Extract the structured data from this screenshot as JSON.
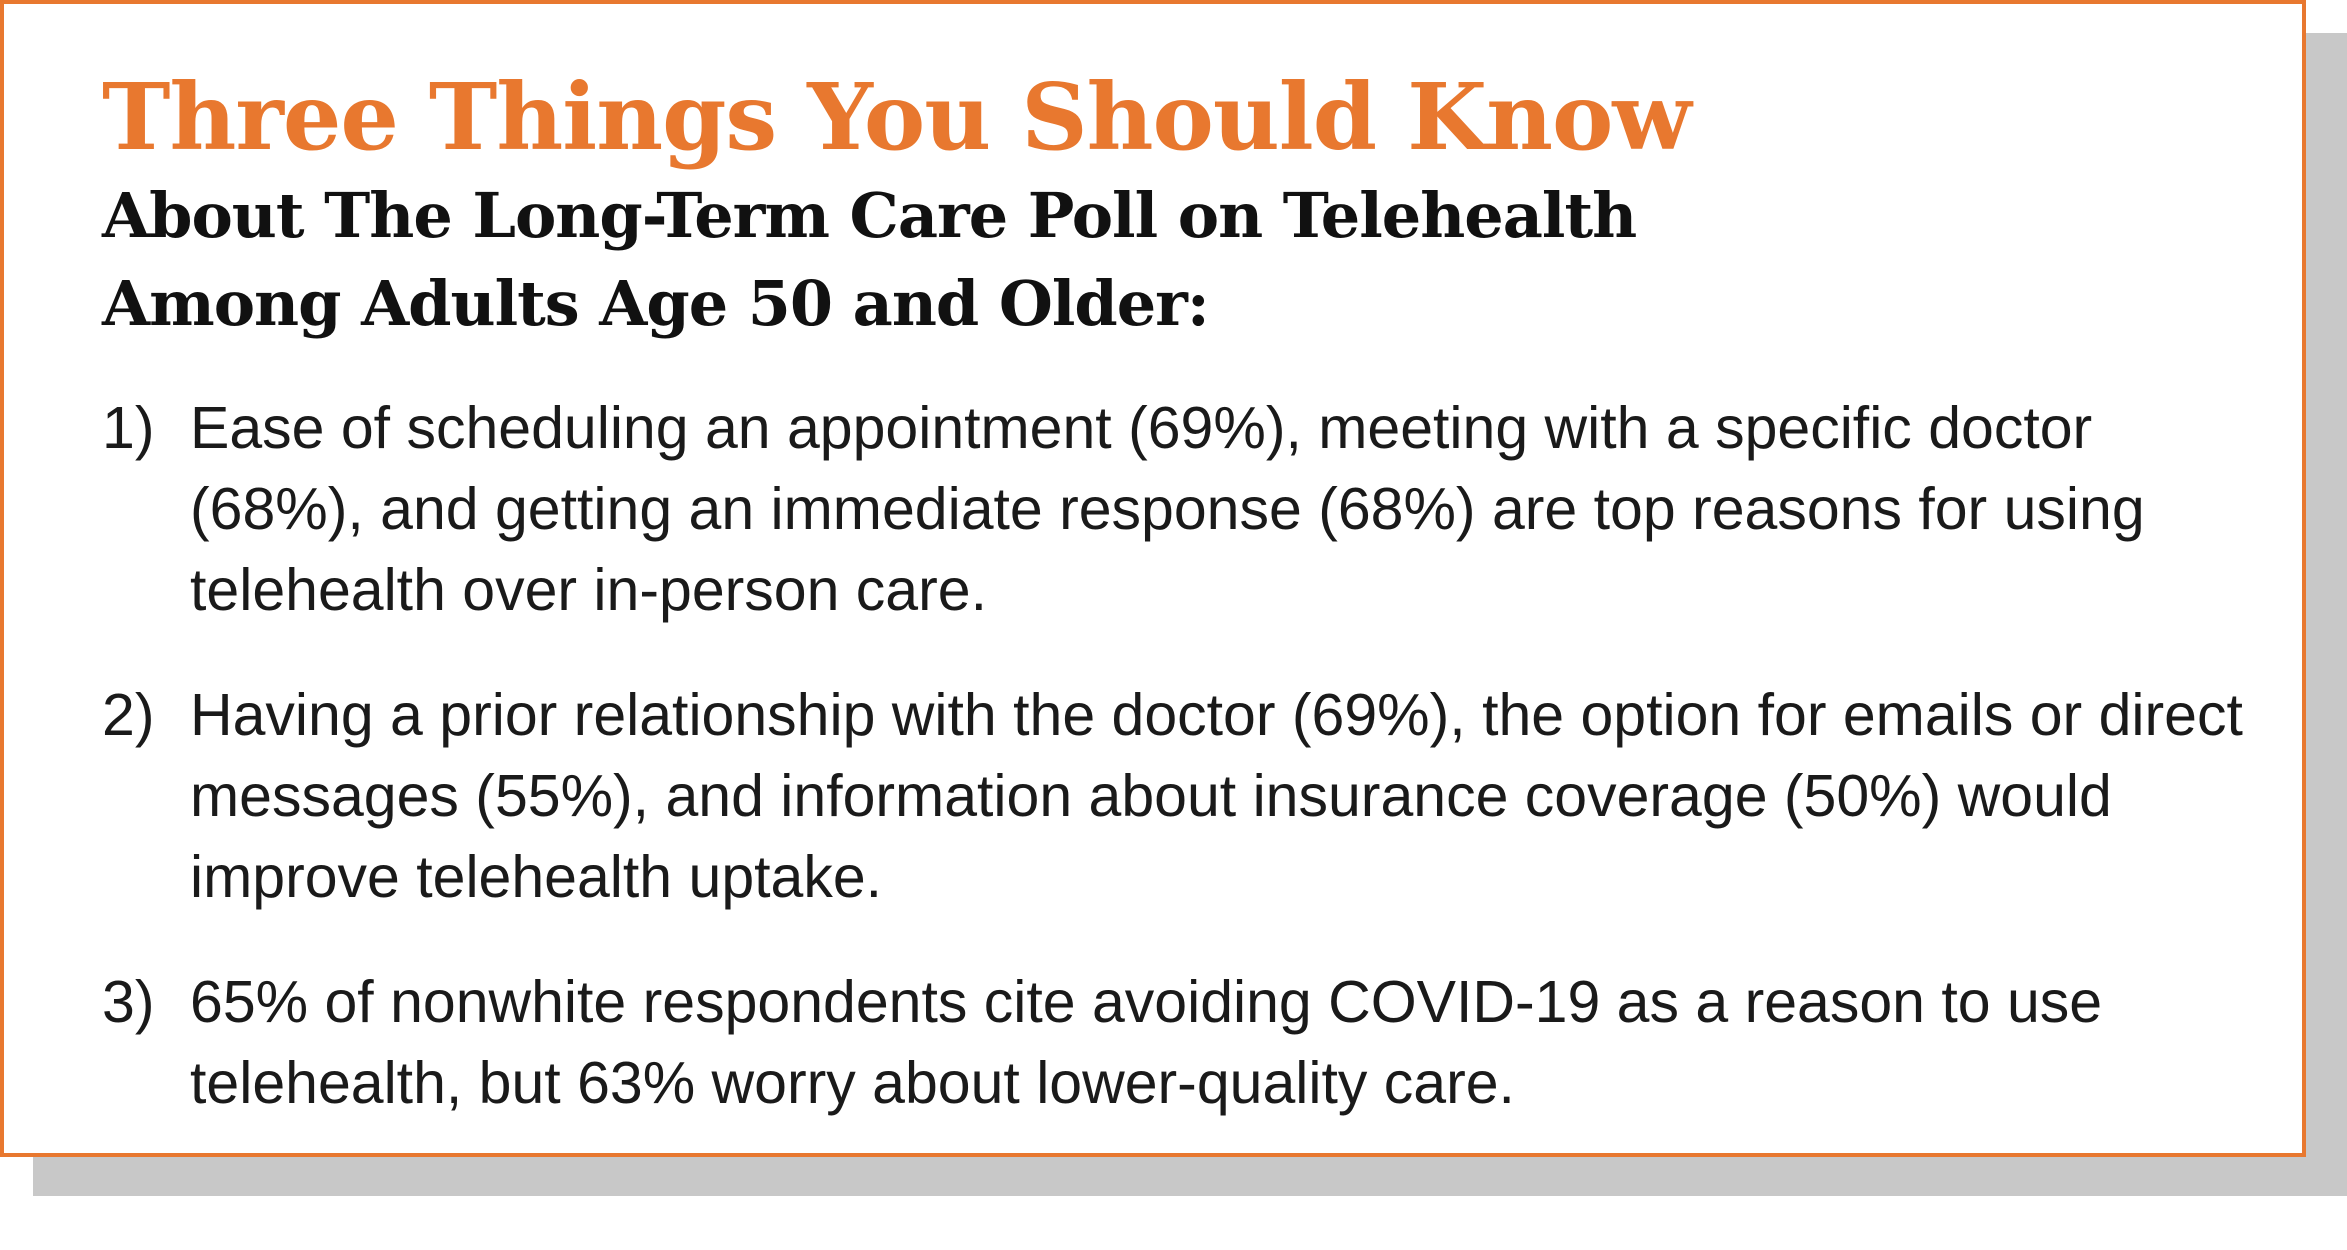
{
  "title": "Three Things You Should Know",
  "subtitle": {
    "line1": "About The Long-Term Care Poll on Telehealth",
    "line2": "Among Adults Age 50 and Older:"
  },
  "items": [
    {
      "number": "1)",
      "text": "Ease of scheduling an appointment (69%), meeting with a specific doctor (68%), and getting an immediate response (68%) are top reasons for using telehealth over in-person care."
    },
    {
      "number": "2)",
      "text": "Having a prior relationship with the doctor (69%), the option for emails or direct messages (55%), and information about insurance coverage (50%) would improve telehealth uptake."
    },
    {
      "number": "3)",
      "text": "65% of nonwhite respondents cite avoiding COVID-19 as a reason to use telehealth, but 63% worry about lower-quality care."
    }
  ],
  "colors": {
    "accent": "#e8782f",
    "shadow": "#c8c8c8",
    "text": "#1a1a1a"
  }
}
